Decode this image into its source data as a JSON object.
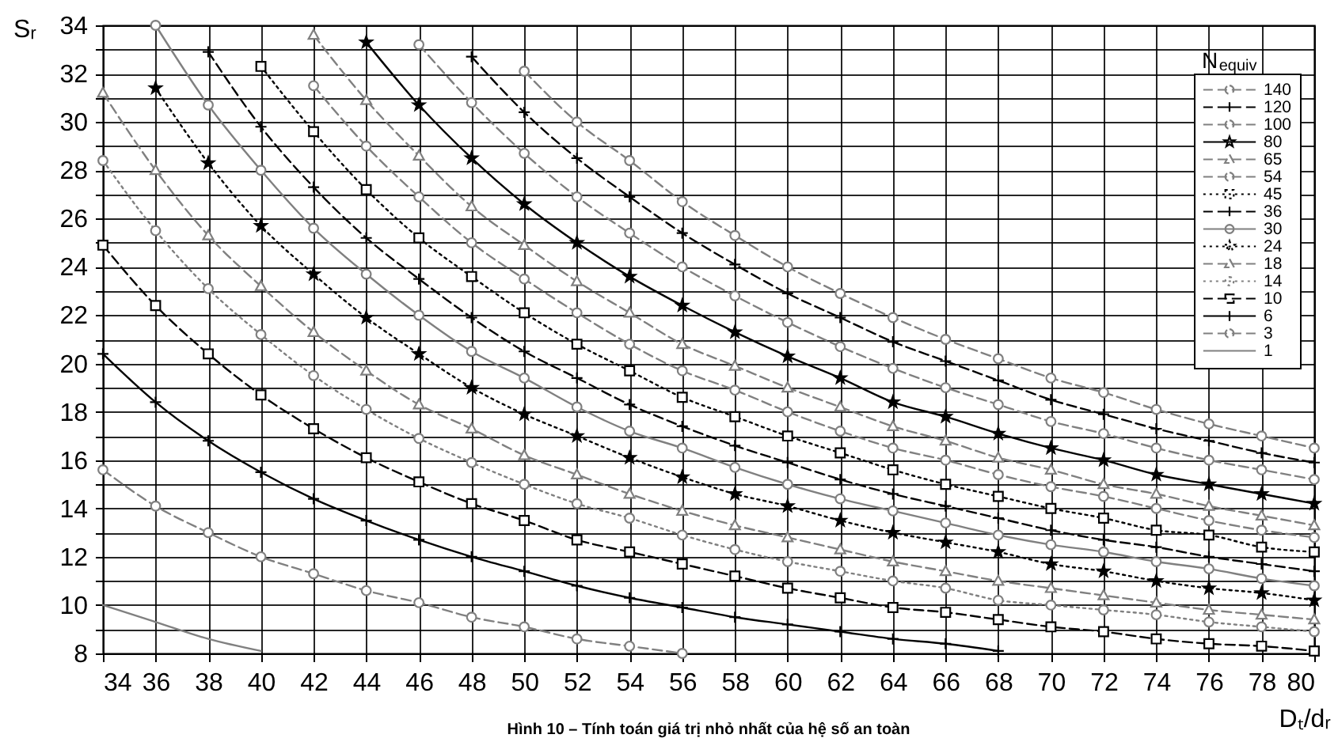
{
  "chart_data": {
    "type": "line",
    "title": "Hình 10 – Tính toán giá trị nhỏ nhất của hệ số an toàn",
    "xlabel": "Dₜ/dᵣ",
    "ylabel": "Sᵣ",
    "legend_title": "N$_{equiv}$",
    "xlim": [
      34,
      80
    ],
    "ylim": [
      8,
      34
    ],
    "xticks": [
      34,
      36,
      38,
      40,
      42,
      44,
      46,
      48,
      50,
      52,
      54,
      56,
      58,
      60,
      62,
      64,
      66,
      68,
      70,
      72,
      74,
      76,
      78,
      80
    ],
    "yticks": [
      8,
      {
        "value": 9,
        "label": null
      },
      10,
      {
        "value": 11,
        "label": null
      },
      12,
      {
        "value": 13,
        "label": null
      },
      14,
      {
        "value": 15,
        "label": null
      },
      16,
      {
        "value": 17,
        "label": null
      },
      18,
      {
        "value": 19,
        "label": null
      },
      20,
      {
        "value": 21,
        "label": null
      },
      22,
      {
        "value": 23,
        "label": null
      },
      24,
      {
        "value": 25,
        "label": null
      },
      26,
      {
        "value": 27,
        "label": null
      },
      28,
      {
        "value": 29,
        "label": null
      },
      30,
      {
        "value": 31,
        "label": null
      },
      32,
      {
        "value": 33,
        "label": null
      },
      34
    ],
    "grid": true,
    "legend": "top right",
    "series": [
      {
        "name": "140",
        "color": "#808080",
        "marker": "circle",
        "line_style": "dashed",
        "x": [
          50,
          52,
          54,
          56,
          58,
          60,
          62,
          64,
          66,
          68,
          70,
          72,
          74,
          76,
          78,
          80
        ],
        "values": [
          32.1,
          30.0,
          28.4,
          26.7,
          25.3,
          24.0,
          22.9,
          21.9,
          21.0,
          20.2,
          19.4,
          18.8,
          18.1,
          17.5,
          17.0,
          16.5
        ]
      },
      {
        "name": "120",
        "color": "#000000",
        "marker": "cross",
        "line_style": "dashed",
        "x": [
          48,
          50,
          52,
          54,
          56,
          58,
          60,
          62,
          64,
          66,
          68,
          70,
          72,
          74,
          76,
          78,
          80
        ],
        "values": [
          32.7,
          30.4,
          28.5,
          26.9,
          25.4,
          24.1,
          22.9,
          21.9,
          20.9,
          20.1,
          19.3,
          18.5,
          17.9,
          17.3,
          16.8,
          16.3,
          15.9
        ]
      },
      {
        "name": "100",
        "color": "#808080",
        "marker": "circle",
        "line_style": "dashed",
        "x": [
          46,
          48,
          50,
          52,
          54,
          56,
          58,
          60,
          62,
          64,
          66,
          68,
          70,
          72,
          74,
          76,
          78,
          80
        ],
        "values": [
          33.2,
          30.8,
          28.7,
          26.9,
          25.4,
          24.0,
          22.8,
          21.7,
          20.7,
          19.8,
          19.0,
          18.3,
          17.6,
          17.1,
          16.5,
          16.0,
          15.6,
          15.2
        ]
      },
      {
        "name": "80",
        "color": "#000000",
        "marker": "star",
        "line_style": "solid",
        "x": [
          44,
          46,
          48,
          50,
          52,
          54,
          56,
          58,
          60,
          62,
          64,
          66,
          68,
          70,
          72,
          74,
          76,
          78,
          80
        ],
        "values": [
          33.3,
          30.7,
          28.5,
          26.6,
          25.0,
          23.6,
          22.4,
          21.3,
          20.3,
          19.4,
          18.4,
          17.8,
          17.1,
          16.5,
          16.0,
          15.4,
          15.0,
          14.6,
          14.2
        ]
      },
      {
        "name": "65",
        "color": "#808080",
        "marker": "triangle",
        "line_style": "dashed",
        "x": [
          42,
          44,
          46,
          48,
          50,
          52,
          54,
          56,
          58,
          60,
          62,
          64,
          66,
          68,
          70,
          72,
          74,
          76,
          78,
          80
        ],
        "values": [
          33.6,
          30.9,
          28.6,
          26.5,
          24.9,
          23.4,
          22.1,
          20.8,
          19.9,
          19.0,
          18.2,
          17.4,
          16.8,
          16.1,
          15.6,
          15.0,
          14.6,
          14.1,
          13.7,
          13.3
        ]
      },
      {
        "name": "54",
        "color": "#808080",
        "marker": "circle",
        "line_style": "dashed",
        "x": [
          42,
          44,
          46,
          48,
          50,
          52,
          54,
          56,
          58,
          60,
          62,
          64,
          66,
          68,
          70,
          72,
          74,
          76,
          78,
          80
        ],
        "values": [
          31.5,
          29.0,
          26.9,
          25.0,
          23.5,
          22.1,
          20.8,
          19.7,
          18.9,
          18.0,
          17.2,
          16.5,
          16.0,
          15.4,
          14.9,
          14.5,
          14.0,
          13.5,
          13.1,
          12.8
        ]
      },
      {
        "name": "45",
        "color": "#000000",
        "marker": "square",
        "line_style": "dotted",
        "x": [
          40,
          42,
          44,
          46,
          48,
          50,
          52,
          54,
          56,
          58,
          60,
          62,
          64,
          66,
          68,
          70,
          72,
          74,
          76,
          78,
          80
        ],
        "values": [
          32.3,
          29.6,
          27.2,
          25.2,
          23.6,
          22.1,
          20.8,
          19.7,
          18.6,
          17.8,
          17.0,
          16.3,
          15.6,
          15.0,
          14.5,
          14.0,
          13.6,
          13.1,
          12.9,
          12.4,
          12.2
        ]
      },
      {
        "name": "36",
        "color": "#000000",
        "marker": "cross",
        "line_style": "dashed",
        "x": [
          38,
          40,
          42,
          44,
          46,
          48,
          50,
          52,
          54,
          56,
          58,
          60,
          62,
          64,
          66,
          68,
          70,
          72,
          74,
          76,
          78,
          80
        ],
        "values": [
          32.9,
          29.8,
          27.3,
          25.2,
          23.5,
          21.9,
          20.5,
          19.4,
          18.3,
          17.4,
          16.6,
          15.9,
          15.2,
          14.6,
          14.1,
          13.6,
          13.1,
          12.7,
          12.4,
          12.0,
          11.7,
          11.4
        ]
      },
      {
        "name": "30",
        "color": "#808080",
        "marker": "circle",
        "line_style": "solid",
        "x": [
          36,
          38,
          40,
          42,
          44,
          46,
          48,
          50,
          52,
          54,
          56,
          58,
          60,
          62,
          64,
          66,
          68,
          70,
          72,
          74,
          76,
          78,
          80
        ],
        "values": [
          34.0,
          30.7,
          28.0,
          25.6,
          23.7,
          22.0,
          20.5,
          19.4,
          18.2,
          17.2,
          16.5,
          15.7,
          15.0,
          14.4,
          13.9,
          13.4,
          12.9,
          12.5,
          12.2,
          11.8,
          11.5,
          11.1,
          10.8
        ]
      },
      {
        "name": "24",
        "color": "#000000",
        "marker": "star",
        "line_style": "dotted",
        "x": [
          36,
          38,
          40,
          42,
          44,
          46,
          48,
          50,
          52,
          54,
          56,
          58,
          60,
          62,
          64,
          66,
          68,
          70,
          72,
          74,
          76,
          78,
          80
        ],
        "values": [
          31.4,
          28.3,
          25.7,
          23.7,
          21.9,
          20.4,
          19.0,
          17.9,
          17.0,
          16.1,
          15.3,
          14.6,
          14.1,
          13.5,
          13.0,
          12.6,
          12.2,
          11.7,
          11.4,
          11.0,
          10.7,
          10.5,
          10.2
        ]
      },
      {
        "name": "18",
        "color": "#808080",
        "marker": "triangle",
        "line_style": "dashed",
        "x": [
          34,
          36,
          38,
          40,
          42,
          44,
          46,
          48,
          50,
          52,
          54,
          56,
          58,
          60,
          62,
          64,
          66,
          68,
          70,
          72,
          74,
          76,
          78,
          80
        ],
        "values": [
          31.2,
          28.0,
          25.3,
          23.2,
          21.3,
          19.7,
          18.3,
          17.3,
          16.2,
          15.4,
          14.6,
          13.9,
          13.3,
          12.8,
          12.3,
          11.8,
          11.4,
          11.0,
          10.7,
          10.4,
          10.1,
          9.8,
          9.6,
          9.4
        ]
      },
      {
        "name": "14",
        "color": "#808080",
        "marker": "circle",
        "line_style": "dotted",
        "x": [
          34,
          36,
          38,
          40,
          42,
          44,
          46,
          48,
          50,
          52,
          54,
          56,
          58,
          60,
          62,
          64,
          66,
          68,
          70,
          72,
          74,
          76,
          78,
          80
        ],
        "values": [
          28.4,
          25.5,
          23.1,
          21.2,
          19.5,
          18.1,
          16.9,
          15.9,
          15.0,
          14.2,
          13.6,
          12.9,
          12.3,
          11.8,
          11.4,
          11.0,
          10.7,
          10.2,
          10.0,
          9.8,
          9.6,
          9.3,
          9.1,
          8.9
        ]
      },
      {
        "name": "10",
        "color": "#000000",
        "marker": "square",
        "line_style": "dashed",
        "x": [
          34,
          36,
          38,
          40,
          42,
          44,
          46,
          48,
          50,
          52,
          54,
          56,
          58,
          60,
          62,
          64,
          66,
          68,
          70,
          72,
          74,
          76,
          78,
          80
        ],
        "values": [
          24.9,
          22.4,
          20.4,
          18.7,
          17.3,
          16.1,
          15.1,
          14.2,
          13.5,
          12.7,
          12.2,
          11.7,
          11.2,
          10.7,
          10.3,
          9.9,
          9.7,
          9.4,
          9.1,
          8.9,
          8.6,
          8.4,
          8.3,
          8.1
        ]
      },
      {
        "name": "6",
        "color": "#000000",
        "marker": "cross",
        "line_style": "solid",
        "x": [
          34,
          36,
          38,
          40,
          42,
          44,
          46,
          48,
          50,
          52,
          54,
          56,
          58,
          60,
          62,
          64,
          66,
          68
        ],
        "values": [
          20.4,
          18.4,
          16.8,
          15.5,
          14.4,
          13.5,
          12.7,
          12.0,
          11.4,
          10.8,
          10.3,
          9.9,
          9.5,
          9.2,
          8.9,
          8.6,
          8.4,
          8.1
        ]
      },
      {
        "name": "3",
        "color": "#808080",
        "marker": "circle",
        "line_style": "dashed",
        "x": [
          34,
          36,
          38,
          40,
          42,
          44,
          46,
          48,
          50,
          52,
          54,
          56
        ],
        "values": [
          15.6,
          14.1,
          13.0,
          12.0,
          11.3,
          10.6,
          10.1,
          9.5,
          9.1,
          8.6,
          8.3,
          8.0
        ]
      },
      {
        "name": "1",
        "color": "#808080",
        "marker": "none",
        "line_style": "solid",
        "x": [
          34,
          36,
          38,
          40
        ],
        "values": [
          10.0,
          9.3,
          8.6,
          8.1
        ]
      }
    ]
  }
}
